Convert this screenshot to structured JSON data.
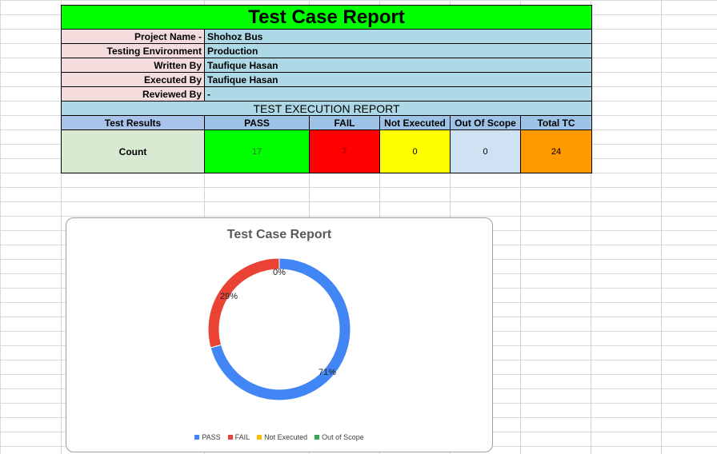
{
  "report": {
    "title": "Test Case Report",
    "info_rows": [
      {
        "label": "Project Name  -",
        "value": "Shohoz Bus"
      },
      {
        "label": "Testing Environment",
        "value": "Production"
      },
      {
        "label": "Written By",
        "value": "Taufique Hasan"
      },
      {
        "label": "Executed By",
        "value": "Taufique Hasan"
      },
      {
        "label": "Reviewed By",
        "value": "-"
      }
    ],
    "section_title": "TEST EXECUTION REPORT",
    "headers": [
      "Test Results",
      "PASS",
      "FAIL",
      "Not Executed",
      "Out Of Scope",
      "Total TC"
    ],
    "count_label": "Count",
    "counts": {
      "pass": "17",
      "fail": "7",
      "not_executed": "0",
      "out_of_scope": "0",
      "total": "24"
    }
  },
  "colors": {
    "title_bg": "#00ff00",
    "pass": "#00ff00",
    "fail": "#ff0000",
    "not_executed": "#ffff00",
    "out_of_scope": "#cfe2f3",
    "total": "#ff9900"
  },
  "chart_data": {
    "type": "pie",
    "variant": "doughnut",
    "title": "Test Case Report",
    "categories": [
      "PASS",
      "FAIL",
      "Not Executed",
      "Out of Scope"
    ],
    "values": [
      17,
      7,
      0,
      0
    ],
    "data_labels": [
      "71%",
      "29%",
      "0%",
      "0%"
    ],
    "colors": [
      "#4285f4",
      "#ea4335",
      "#fbbc04",
      "#34a853"
    ],
    "legend_position": "bottom"
  }
}
